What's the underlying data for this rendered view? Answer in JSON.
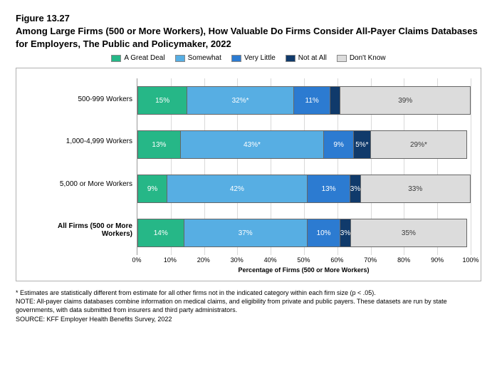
{
  "figure_label": "Figure 13.27",
  "title": "Among Large Firms (500 or More Workers), How Valuable Do Firms Consider All-Payer Claims Databases for Employers, The Public and Policymaker, 2022",
  "legend": [
    {
      "label": "A Great Deal",
      "color": "#26b787"
    },
    {
      "label": "Somewhat",
      "color": "#57aee3"
    },
    {
      "label": "Very Little",
      "color": "#2c7bd1"
    },
    {
      "label": "Not at All",
      "color": "#103a6b"
    },
    {
      "label": "Don't Know",
      "color": "#dcdcdc"
    }
  ],
  "categories": [
    {
      "label": "500-999 Workers",
      "bold": false,
      "segments": [
        {
          "value": 15,
          "text": "15%",
          "color": "#26b787",
          "textcolor": "#ffffff"
        },
        {
          "value": 32,
          "text": "32%*",
          "color": "#57aee3",
          "textcolor": "#ffffff"
        },
        {
          "value": 11,
          "text": "11%",
          "color": "#2c7bd1",
          "textcolor": "#ffffff"
        },
        {
          "value": 3,
          "text": "",
          "color": "#103a6b",
          "textcolor": "#ffffff"
        },
        {
          "value": 39,
          "text": "39%",
          "color": "#dcdcdc",
          "textcolor": "#3a3a3a"
        }
      ]
    },
    {
      "label": "1,000-4,999 Workers",
      "bold": false,
      "segments": [
        {
          "value": 13,
          "text": "13%",
          "color": "#26b787",
          "textcolor": "#ffffff"
        },
        {
          "value": 43,
          "text": "43%*",
          "color": "#57aee3",
          "textcolor": "#ffffff"
        },
        {
          "value": 9,
          "text": "9%",
          "color": "#2c7bd1",
          "textcolor": "#ffffff"
        },
        {
          "value": 5,
          "text": "5%*",
          "color": "#103a6b",
          "textcolor": "#ffffff"
        },
        {
          "value": 29,
          "text": "29%*",
          "color": "#dcdcdc",
          "textcolor": "#3a3a3a"
        }
      ]
    },
    {
      "label": "5,000 or More Workers",
      "bold": false,
      "segments": [
        {
          "value": 9,
          "text": "9%",
          "color": "#26b787",
          "textcolor": "#ffffff"
        },
        {
          "value": 42,
          "text": "42%",
          "color": "#57aee3",
          "textcolor": "#ffffff"
        },
        {
          "value": 13,
          "text": "13%",
          "color": "#2c7bd1",
          "textcolor": "#ffffff"
        },
        {
          "value": 3,
          "text": "3%",
          "color": "#103a6b",
          "textcolor": "#ffffff"
        },
        {
          "value": 33,
          "text": "33%",
          "color": "#dcdcdc",
          "textcolor": "#3a3a3a"
        }
      ]
    },
    {
      "label": "All Firms (500 or More Workers)",
      "bold": true,
      "segments": [
        {
          "value": 14,
          "text": "14%",
          "color": "#26b787",
          "textcolor": "#ffffff"
        },
        {
          "value": 37,
          "text": "37%",
          "color": "#57aee3",
          "textcolor": "#ffffff"
        },
        {
          "value": 10,
          "text": "10%",
          "color": "#2c7bd1",
          "textcolor": "#ffffff"
        },
        {
          "value": 3,
          "text": "3%",
          "color": "#103a6b",
          "textcolor": "#ffffff"
        },
        {
          "value": 35,
          "text": "35%",
          "color": "#dcdcdc",
          "textcolor": "#3a3a3a"
        }
      ]
    }
  ],
  "xaxis": {
    "ticks": [
      "0%",
      "10%",
      "20%",
      "30%",
      "40%",
      "50%",
      "60%",
      "70%",
      "80%",
      "90%",
      "100%"
    ],
    "label": "Percentage of Firms (500 or More Workers)",
    "max": 100
  },
  "footnotes": {
    "star": "* Estimates are statistically different from estimate for all other firms not in the indicated category within each firm size (p < .05).",
    "note": "NOTE: All-payer claims databases combine information on medical claims, and eligibility from private and public payers.  These datasets are run by state governments, with data submitted from insurers and third party administrators.",
    "source": "SOURCE: KFF Employer Health Benefits Survey, 2022"
  }
}
